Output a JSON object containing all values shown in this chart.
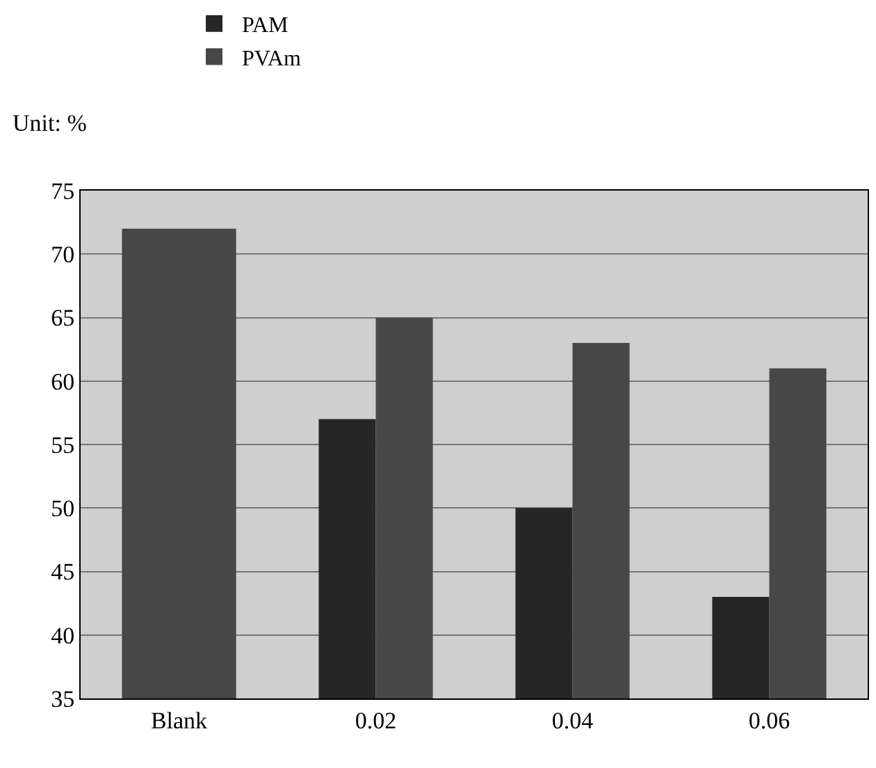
{
  "chart_data": {
    "type": "bar",
    "ylabel": "Unit: %",
    "categories": [
      "Blank",
      "0.02",
      "0.04",
      "0.06"
    ],
    "series": [
      {
        "color": "#464646",
        "values": [
          72,
          null,
          null,
          null
        ]
      },
      {
        "name": "PAM",
        "color": "#262626",
        "values": [
          null,
          57,
          50,
          43
        ]
      },
      {
        "name": "PVAm",
        "color": "#474747",
        "values": [
          null,
          65,
          63,
          61
        ]
      }
    ],
    "ylim": [
      35,
      75
    ],
    "yticks": [
      35,
      40,
      45,
      50,
      55,
      60,
      65,
      70,
      75
    ],
    "grid": "y",
    "legend": "top"
  }
}
